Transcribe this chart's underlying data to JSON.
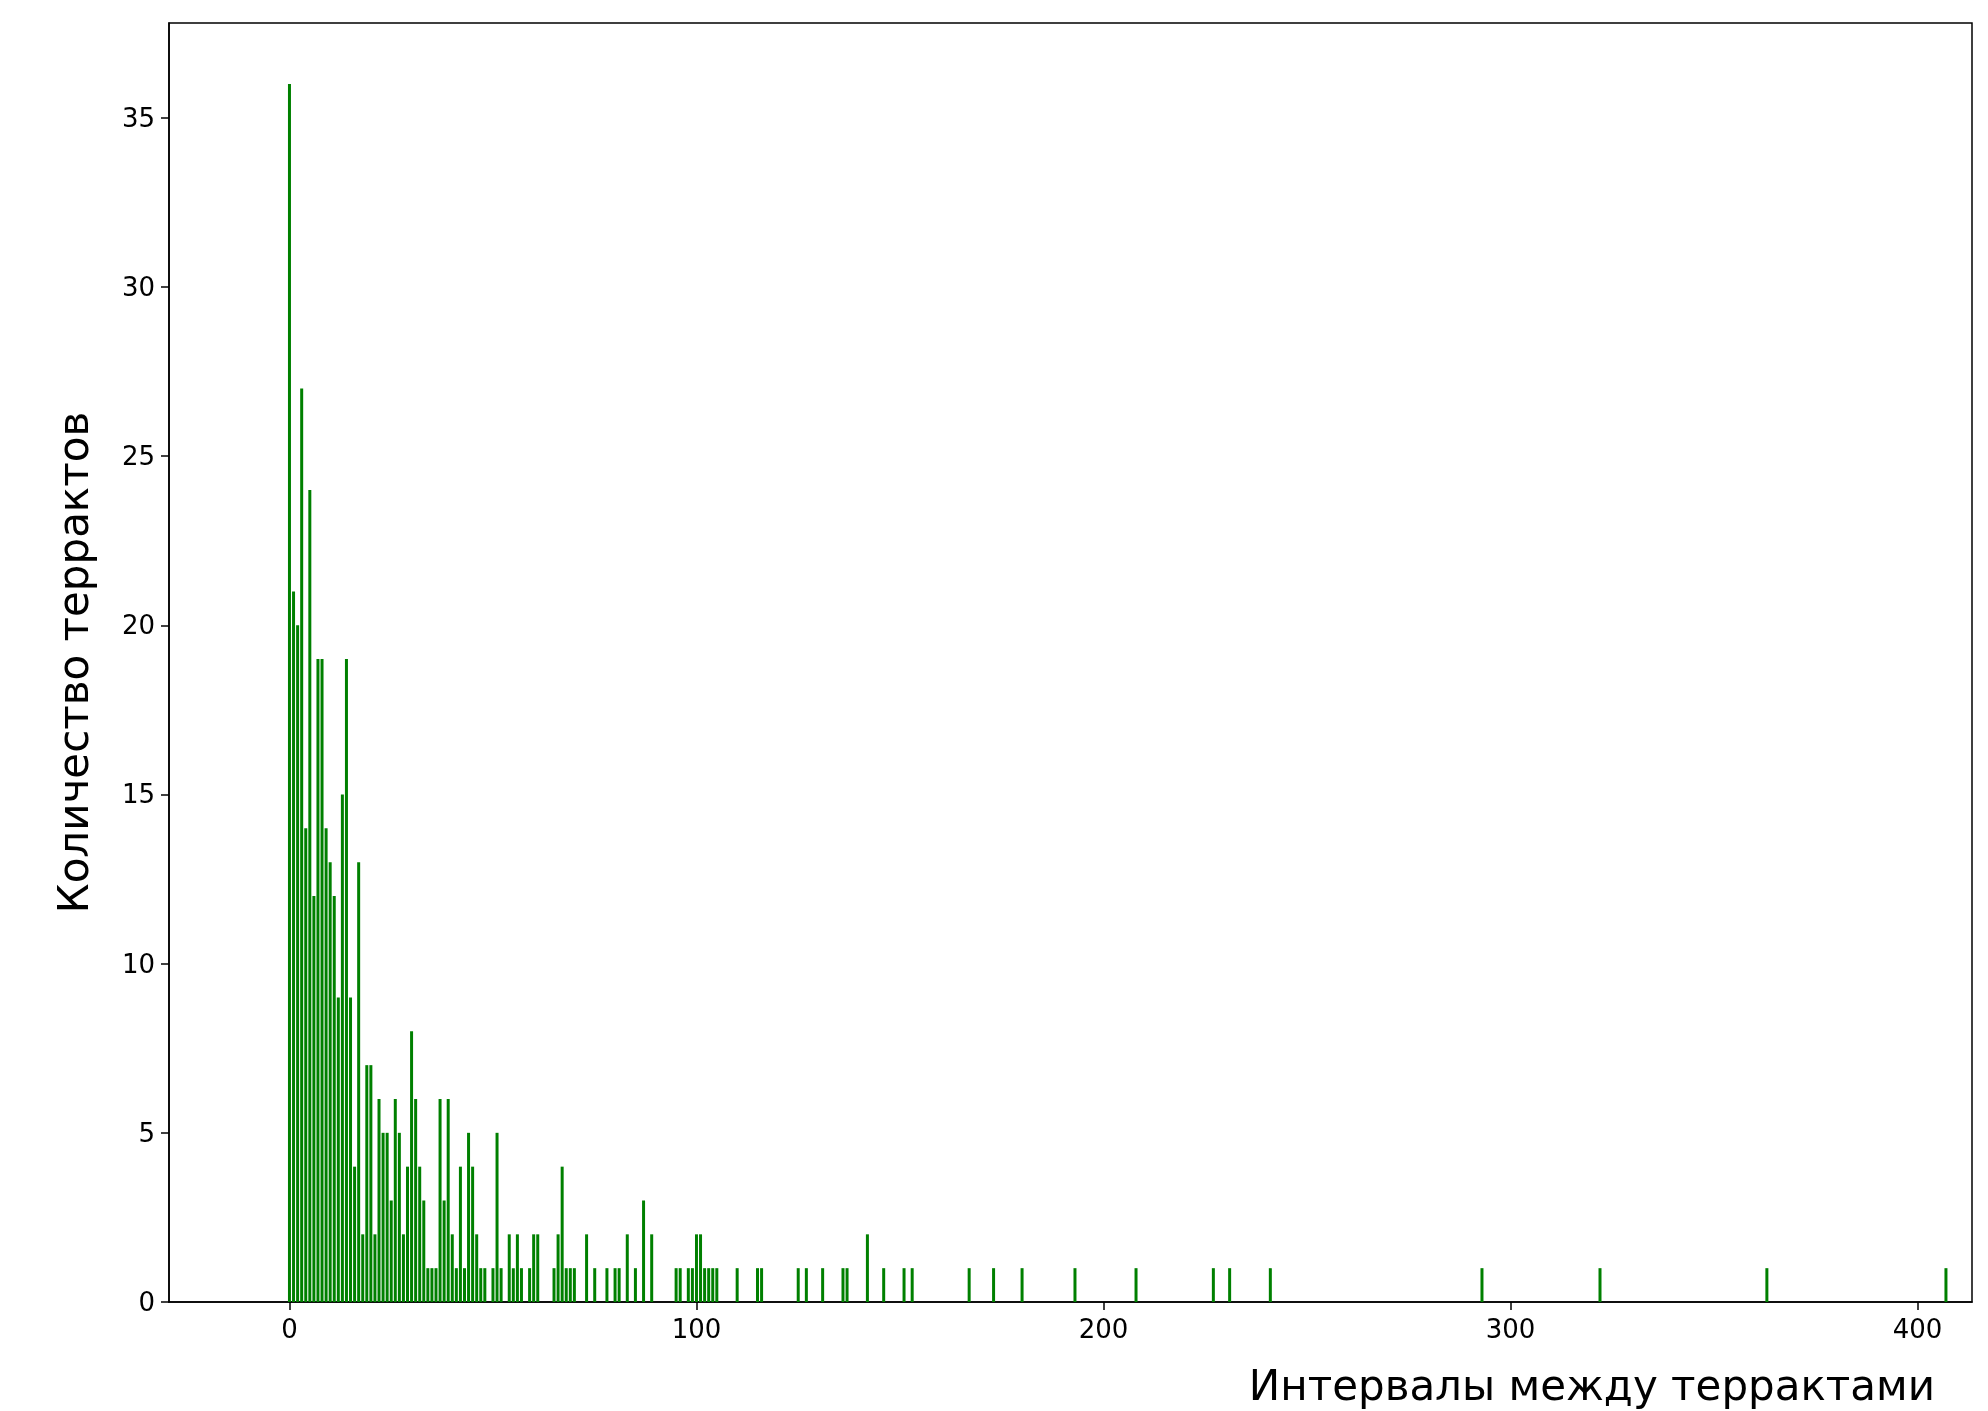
{
  "chart_data": {
    "type": "bar",
    "xlabel": "Интервалы между террактами",
    "ylabel": "Количество террактов",
    "x": [
      0,
      1,
      2,
      3,
      4,
      5,
      6,
      7,
      8,
      9,
      10,
      11,
      12,
      13,
      14,
      15,
      16,
      17,
      18,
      19,
      20,
      21,
      22,
      23,
      24,
      25,
      26,
      27,
      28,
      29,
      30,
      31,
      32,
      33,
      34,
      35,
      36,
      37,
      38,
      39,
      40,
      41,
      42,
      43,
      44,
      45,
      46,
      47,
      48,
      50,
      51,
      52,
      54,
      55,
      56,
      57,
      59,
      60,
      61,
      65,
      66,
      67,
      68,
      69,
      70,
      73,
      75,
      78,
      80,
      81,
      83,
      85,
      87,
      89,
      95,
      96,
      98,
      99,
      100,
      101,
      102,
      103,
      104,
      105,
      110,
      115,
      116,
      125,
      127,
      131,
      136,
      137,
      142,
      146,
      151,
      153,
      167,
      173,
      180,
      193,
      208,
      227,
      231,
      241,
      293,
      322,
      363,
      407
    ],
    "values": [
      36,
      21,
      20,
      27,
      14,
      24,
      12,
      19,
      19,
      14,
      13,
      12,
      9,
      15,
      19,
      9,
      4,
      13,
      2,
      7,
      7,
      2,
      6,
      5,
      5,
      3,
      6,
      5,
      2,
      4,
      8,
      6,
      4,
      3,
      1,
      1,
      1,
      6,
      3,
      6,
      2,
      1,
      4,
      1,
      5,
      4,
      2,
      1,
      1,
      1,
      5,
      1,
      2,
      1,
      2,
      1,
      1,
      2,
      2,
      1,
      2,
      4,
      1,
      1,
      1,
      2,
      1,
      1,
      1,
      1,
      2,
      1,
      3,
      2,
      1,
      1,
      1,
      1,
      2,
      2,
      1,
      1,
      1,
      1,
      1,
      1,
      1,
      1,
      1,
      1,
      1,
      1,
      2,
      1,
      1,
      1,
      1,
      1,
      1,
      1,
      1,
      1,
      1,
      1,
      1,
      1,
      1,
      1
    ],
    "color": "#008000",
    "xlim": [
      -29.6,
      413.4
    ],
    "xticks": [
      0,
      100,
      200,
      300,
      400
    ],
    "ylim": [
      0,
      37.8
    ],
    "yticks": [
      0,
      5,
      10,
      15,
      20,
      25,
      30,
      35
    ],
    "grid": false
  }
}
